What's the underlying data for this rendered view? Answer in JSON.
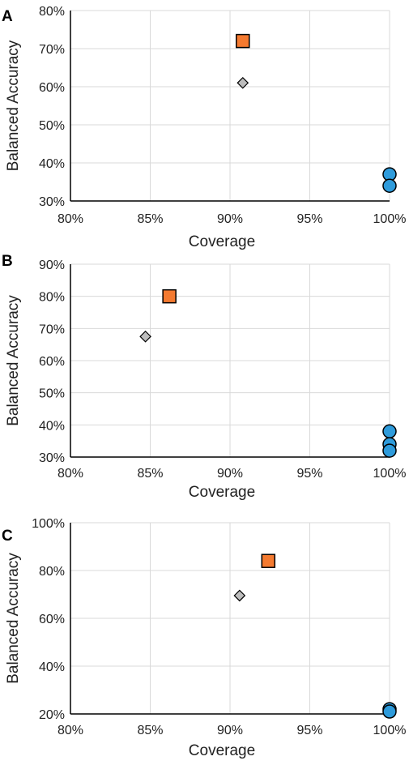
{
  "colors": {
    "square": "#F47A30",
    "diamond": "#BDBDBD",
    "circle": "#2E9BDB",
    "marker_stroke": "#000000",
    "grid": "#D9D9D9",
    "axis": "#000000"
  },
  "chart_data": [
    {
      "type": "scatter",
      "panel_label": "A",
      "xlabel": "Coverage",
      "ylabel": "Balanced Accuracy",
      "xlim": [
        80,
        100
      ],
      "ylim": [
        30,
        80
      ],
      "x_ticks": [
        80,
        85,
        90,
        95,
        100
      ],
      "y_ticks": [
        30,
        40,
        50,
        60,
        70,
        80
      ],
      "x_tick_labels": [
        "80%",
        "85%",
        "90%",
        "95%",
        "100%"
      ],
      "y_tick_labels": [
        "30%",
        "40%",
        "50%",
        "60%",
        "70%",
        "80%"
      ],
      "grid": true,
      "series": [
        {
          "marker": "square",
          "points": [
            {
              "x": 90.8,
              "y": 72
            }
          ]
        },
        {
          "marker": "diamond",
          "points": [
            {
              "x": 90.8,
              "y": 61
            }
          ]
        },
        {
          "marker": "circle",
          "points": [
            {
              "x": 100,
              "y": 37
            },
            {
              "x": 100,
              "y": 34
            }
          ]
        }
      ]
    },
    {
      "type": "scatter",
      "panel_label": "B",
      "xlabel": "Coverage",
      "ylabel": "Balanced Accuracy",
      "xlim": [
        80,
        100
      ],
      "ylim": [
        30,
        90
      ],
      "x_ticks": [
        80,
        85,
        90,
        95,
        100
      ],
      "y_ticks": [
        30,
        40,
        50,
        60,
        70,
        80,
        90
      ],
      "x_tick_labels": [
        "80%",
        "85%",
        "90%",
        "95%",
        "100%"
      ],
      "y_tick_labels": [
        "30%",
        "40%",
        "50%",
        "60%",
        "70%",
        "80%",
        "90%"
      ],
      "grid": true,
      "series": [
        {
          "marker": "square",
          "points": [
            {
              "x": 86.2,
              "y": 80
            }
          ]
        },
        {
          "marker": "diamond",
          "points": [
            {
              "x": 84.7,
              "y": 67.5
            }
          ]
        },
        {
          "marker": "circle",
          "points": [
            {
              "x": 100,
              "y": 38
            },
            {
              "x": 100,
              "y": 34
            },
            {
              "x": 100,
              "y": 32
            }
          ]
        }
      ]
    },
    {
      "type": "scatter",
      "panel_label": "C",
      "xlabel": "Coverage",
      "ylabel": "Balanced Accuracy",
      "xlim": [
        80,
        100
      ],
      "ylim": [
        20,
        100
      ],
      "x_ticks": [
        80,
        85,
        90,
        95,
        100
      ],
      "y_ticks": [
        20,
        40,
        60,
        80,
        100
      ],
      "x_tick_labels": [
        "80%",
        "85%",
        "90%",
        "95%",
        "100%"
      ],
      "y_tick_labels": [
        "20%",
        "40%",
        "60%",
        "80%",
        "100%"
      ],
      "grid": true,
      "series": [
        {
          "marker": "square",
          "points": [
            {
              "x": 92.4,
              "y": 84
            }
          ]
        },
        {
          "marker": "diamond",
          "points": [
            {
              "x": 90.6,
              "y": 69.5
            }
          ]
        },
        {
          "marker": "circle",
          "points": [
            {
              "x": 100,
              "y": 22
            },
            {
              "x": 100,
              "y": 21
            }
          ]
        }
      ]
    }
  ]
}
